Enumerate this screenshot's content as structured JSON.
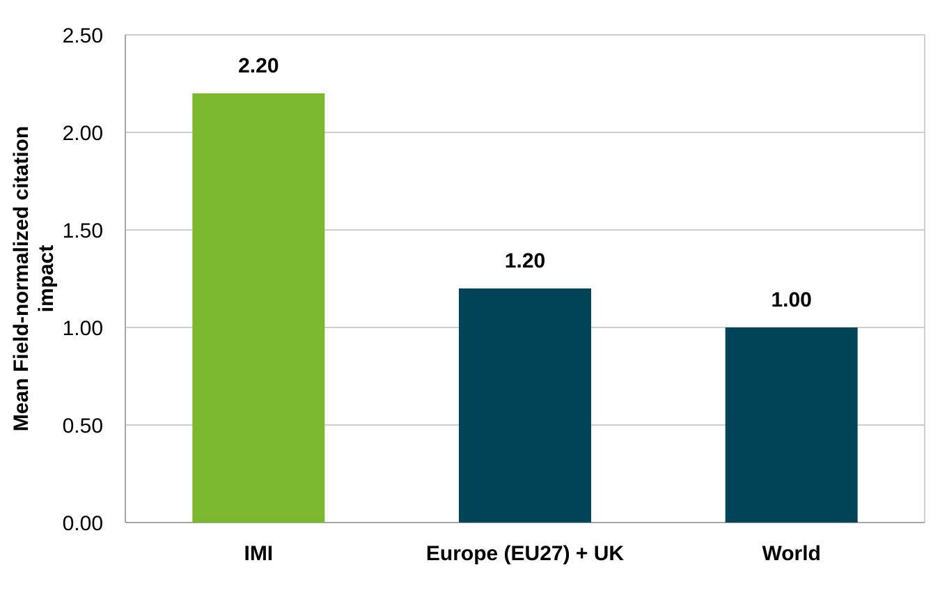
{
  "chart_data": {
    "type": "bar",
    "title": "",
    "xlabel": "",
    "ylabel": [
      "Mean Field-normalized citation",
      "impact"
    ],
    "categories": [
      "IMI",
      "Europe (EU27) + UK",
      "World"
    ],
    "values": [
      2.2,
      1.2,
      1.0
    ],
    "data_labels": [
      "2.20",
      "1.20",
      "1.00"
    ],
    "colors": [
      "#7CB82F",
      "#024457",
      "#024457"
    ],
    "ylim": [
      0,
      2.5
    ],
    "yticks": [
      "0.00",
      "0.50",
      "1.00",
      "1.50",
      "2.00",
      "2.50"
    ],
    "grid": true,
    "legend": "none"
  }
}
